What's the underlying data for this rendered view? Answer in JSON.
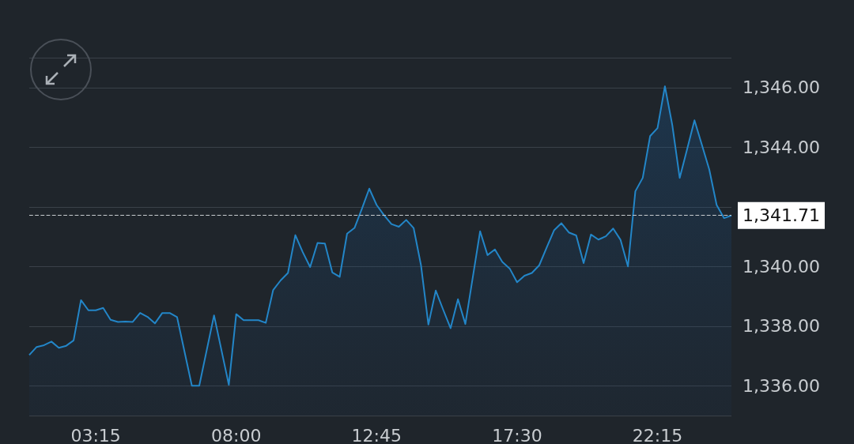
{
  "chart_data": {
    "type": "area",
    "x": [
      1.0,
      1.25,
      1.5,
      1.75,
      2.0,
      2.25,
      2.5,
      2.75,
      3.0,
      3.25,
      3.5,
      3.75,
      4.0,
      4.25,
      4.5,
      4.75,
      5.0,
      5.25,
      5.5,
      5.75,
      6.0,
      6.5,
      6.75,
      7.25,
      7.75,
      8.0,
      8.25,
      8.75,
      9.0,
      9.25,
      9.5,
      9.75,
      10.0,
      10.25,
      10.5,
      10.75,
      11.0,
      11.25,
      11.5,
      11.75,
      12.0,
      12.25,
      12.5,
      12.75,
      13.0,
      13.25,
      13.5,
      13.75,
      14.0,
      14.25,
      14.5,
      14.75,
      15.0,
      15.25,
      15.5,
      15.75,
      16.25,
      16.5,
      16.75,
      17.0,
      17.25,
      17.5,
      17.75,
      18.0,
      18.25,
      18.5,
      18.75,
      19.0,
      19.25,
      19.5,
      19.75,
      20.0,
      20.25,
      20.5,
      20.75,
      21.0,
      21.25,
      21.5,
      21.75,
      22.0,
      22.25,
      22.5,
      22.75,
      23.0,
      23.25,
      23.5,
      23.75,
      24.0,
      24.25,
      24.5,
      24.75
    ],
    "series": [
      {
        "color": "#2386c8",
        "values": [
          1337.03,
          1337.3,
          1337.36,
          1337.48,
          1337.27,
          1337.34,
          1337.52,
          1338.87,
          1338.53,
          1338.53,
          1338.61,
          1338.21,
          1338.14,
          1338.15,
          1338.14,
          1338.44,
          1338.31,
          1338.09,
          1338.44,
          1338.44,
          1338.3,
          1336.0,
          1336.0,
          1338.36,
          1336.03,
          1338.4,
          1338.2,
          1338.2,
          1338.11,
          1339.21,
          1339.53,
          1339.78,
          1341.05,
          1340.48,
          1339.98,
          1340.79,
          1340.77,
          1339.8,
          1339.65,
          1341.1,
          1341.29,
          1341.93,
          1342.61,
          1342.06,
          1341.72,
          1341.42,
          1341.33,
          1341.56,
          1341.29,
          1340.04,
          1338.05,
          1339.19,
          1338.55,
          1337.93,
          1338.9,
          1338.07,
          1341.18,
          1340.38,
          1340.57,
          1340.15,
          1339.93,
          1339.47,
          1339.69,
          1339.78,
          1340.04,
          1340.63,
          1341.21,
          1341.45,
          1341.14,
          1341.04,
          1340.11,
          1341.07,
          1340.9,
          1341.01,
          1341.27,
          1340.89,
          1340.0,
          1342.52,
          1342.97,
          1344.37,
          1344.64,
          1346.04,
          1344.74,
          1342.97,
          1343.93,
          1344.9,
          1344.08,
          1343.25,
          1342.06,
          1341.62,
          1341.71
        ]
      }
    ],
    "xlim": [
      1.0,
      24.75
    ],
    "xticks": [
      {
        "value": 3.25,
        "label": "03:15"
      },
      {
        "value": 8.0,
        "label": "08:00"
      },
      {
        "value": 12.75,
        "label": "12:45"
      },
      {
        "value": 17.5,
        "label": "17:30"
      },
      {
        "value": 22.25,
        "label": "22:15"
      }
    ],
    "ylim": [
      1335,
      1347
    ],
    "yticks": [
      {
        "value": 1335,
        "label": null
      },
      {
        "value": 1336,
        "label": "1,336.00"
      },
      {
        "value": 1338,
        "label": "1,338.00"
      },
      {
        "value": 1340,
        "label": "1,340.00"
      },
      {
        "value": 1342,
        "label": null
      },
      {
        "value": 1344,
        "label": "1,344.00"
      },
      {
        "value": 1346,
        "label": "1,346.00"
      },
      {
        "value": 1347,
        "label": null
      }
    ],
    "grid": "y",
    "marker": "none",
    "line_style": "solid",
    "ref_lines": [
      {
        "axis": "y",
        "value": 1341.71,
        "label": "1,341.71",
        "color": "#c8ccd0",
        "line_style": "dashed"
      }
    ]
  }
}
